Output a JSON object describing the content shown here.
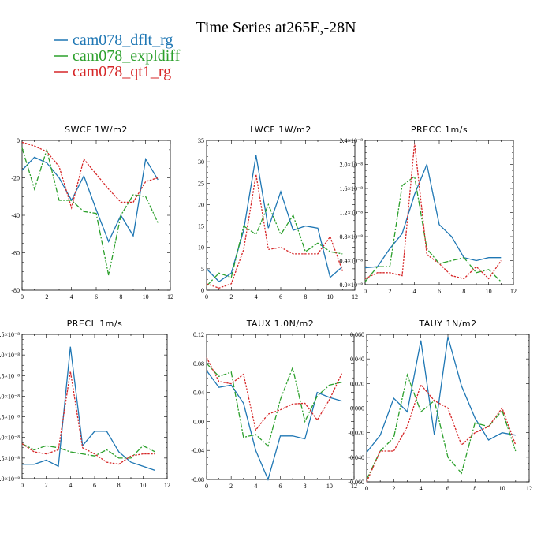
{
  "figure": {
    "title": "Time Series at265E,-28N",
    "colors": {
      "dflt": "#1f77b4",
      "expl": "#2ca02c",
      "qt1": "#d62728"
    }
  },
  "legend": {
    "entries": [
      {
        "name": "cam078_dflt_rg",
        "color": "#1f77b4"
      },
      {
        "name": "cam078_expldiff",
        "color": "#2ca02c"
      },
      {
        "name": "cam078_qt1_rg",
        "color": "#d62728"
      }
    ]
  },
  "chart_data": [
    {
      "type": "line",
      "title": "SWCF   1W/m2",
      "xlim": [
        0,
        12
      ],
      "ylim": [
        -80,
        0
      ],
      "xticks": [
        0,
        2,
        4,
        6,
        8,
        10,
        12
      ],
      "xtick_labels": [
        "0",
        "2",
        "4",
        "6",
        "8",
        "10",
        "12"
      ],
      "yticks": [
        -80,
        -60,
        -40,
        -20,
        0
      ],
      "ytick_labels": [
        "-80",
        "-60",
        "-40",
        "-20",
        "0"
      ],
      "x": [
        0,
        1,
        2,
        3,
        4,
        5,
        6,
        7,
        8,
        9,
        10,
        11
      ],
      "series": [
        {
          "name": "cam078_dflt_rg",
          "values": [
            -16,
            -9,
            -12,
            -20,
            -32,
            -19,
            -37,
            -54,
            -40,
            -51,
            -10,
            -21
          ]
        },
        {
          "name": "cam078_expldiff",
          "values": [
            -4,
            -26,
            -5,
            -32,
            -32,
            -38,
            -39,
            -72,
            -40,
            -29,
            -30,
            -44
          ]
        },
        {
          "name": "cam078_qt1_rg",
          "values": [
            -1,
            -3,
            -6,
            -14,
            -36,
            -10,
            -18,
            -26,
            -33,
            -33,
            -22,
            -20
          ]
        }
      ]
    },
    {
      "type": "line",
      "title": "LWCF   1W/m2",
      "xlim": [
        0,
        12
      ],
      "ylim": [
        0,
        35
      ],
      "xticks": [
        0,
        2,
        4,
        6,
        8,
        10,
        12
      ],
      "xtick_labels": [
        "0",
        "2",
        "4",
        "6",
        "8",
        "10",
        "12"
      ],
      "yticks": [
        0,
        5,
        10,
        15,
        20,
        25,
        30,
        35
      ],
      "ytick_labels": [
        "0",
        "5",
        "10",
        "15",
        "20",
        "25",
        "30",
        "35"
      ],
      "x": [
        0,
        1,
        2,
        3,
        4,
        5,
        6,
        7,
        8,
        9,
        10,
        11
      ],
      "series": [
        {
          "name": "cam078_dflt_rg",
          "values": [
            5,
            2,
            4,
            14,
            31.5,
            14.5,
            23,
            14,
            15,
            14.5,
            3,
            5.5
          ]
        },
        {
          "name": "cam078_expldiff",
          "values": [
            1,
            4,
            3,
            15,
            13,
            20,
            13,
            17.5,
            9,
            11,
            9,
            8.5
          ]
        },
        {
          "name": "cam078_qt1_rg",
          "values": [
            1.5,
            0.5,
            1.5,
            9.5,
            27,
            9.5,
            10,
            8.5,
            8.5,
            8.5,
            12.5,
            4.5
          ]
        }
      ]
    },
    {
      "type": "line",
      "title": "PRECC   1m/s",
      "xlim": [
        0,
        12
      ],
      "ylim": [
        0,
        2.4e-08
      ],
      "xticks": [
        0,
        2,
        4,
        6,
        8,
        10,
        12
      ],
      "xtick_labels": [
        "0",
        "2",
        "4",
        "6",
        "8",
        "10",
        "12"
      ],
      "yticks": [
        0,
        4e-09,
        8e-09,
        1.2e-08,
        1.6e-08,
        2e-08,
        2.4e-08
      ],
      "ytick_labels": [
        "0.0×10⁻⁸",
        "0.4×10⁻⁸",
        "0.8×10⁻⁸",
        "1.2×10⁻⁸",
        "1.6×10⁻⁸",
        "2.0×10⁻⁸",
        "2.4×10⁻⁸"
      ],
      "x": [
        0,
        1,
        2,
        3,
        4,
        5,
        6,
        7,
        8,
        9,
        10,
        11
      ],
      "series": [
        {
          "name": "cam078_dflt_rg",
          "values": [
            2.8e-09,
            3e-09,
            6e-09,
            8.5e-09,
            1.5e-08,
            2e-08,
            1e-08,
            8e-09,
            4.5e-09,
            4e-09,
            4.5e-09,
            4.5e-09
          ]
        },
        {
          "name": "cam078_expldiff",
          "values": [
            5e-10,
            3e-09,
            3e-09,
            1.65e-08,
            1.8e-08,
            6e-09,
            3.5e-09,
            4e-09,
            4.5e-09,
            2e-09,
            2.5e-09,
            5e-10
          ]
        },
        {
          "name": "cam078_qt1_rg",
          "values": [
            1e-09,
            2e-09,
            2e-09,
            1.5e-09,
            2.35e-08,
            5e-09,
            3.5e-09,
            1.5e-09,
            1e-09,
            3e-09,
            1e-09,
            4e-09
          ]
        }
      ]
    },
    {
      "type": "line",
      "title": "PRECL   1m/s",
      "xlim": [
        0,
        12
      ],
      "ylim": [
        0,
        3.5e-08
      ],
      "xticks": [
        0,
        2,
        4,
        6,
        8,
        10,
        12
      ],
      "xtick_labels": [
        "0",
        "2",
        "4",
        "6",
        "8",
        "10",
        "12"
      ],
      "yticks": [
        0,
        5e-09,
        1e-08,
        1.5e-08,
        2e-08,
        2.5e-08,
        3e-08,
        3.5e-08
      ],
      "ytick_labels": [
        "0.0×10⁻⁸",
        "0.5×10⁻⁸",
        "1.0×10⁻⁸",
        "1.5×10⁻⁸",
        "2.0×10⁻⁸",
        "2.5×10⁻⁸",
        "3.0×10⁻⁸",
        "3.5×10⁻⁸"
      ],
      "x": [
        0,
        1,
        2,
        3,
        4,
        5,
        6,
        7,
        8,
        9,
        10,
        11
      ],
      "series": [
        {
          "name": "cam078_dflt_rg",
          "values": [
            3.5e-09,
            3.5e-09,
            4.5e-09,
            3e-09,
            3.2e-08,
            8e-09,
            1.15e-08,
            1.15e-08,
            6.5e-09,
            4e-09,
            3e-09,
            2e-09
          ]
        },
        {
          "name": "cam078_expldiff",
          "values": [
            8.5e-09,
            7e-09,
            8e-09,
            7.5e-09,
            6.5e-09,
            6e-09,
            5.5e-09,
            7e-09,
            5e-09,
            5e-09,
            8e-09,
            6.5e-09
          ]
        },
        {
          "name": "cam078_qt1_rg",
          "values": [
            8.5e-09,
            6.5e-09,
            6e-09,
            7e-09,
            2.6e-08,
            7.5e-09,
            6e-09,
            4e-09,
            3.5e-09,
            5.5e-09,
            6e-09,
            6e-09
          ]
        }
      ]
    },
    {
      "type": "line",
      "title": "TAUX   1.0N/m2",
      "xlim": [
        0,
        12
      ],
      "ylim": [
        -0.08,
        0.12
      ],
      "xticks": [
        0,
        2,
        4,
        6,
        8,
        10,
        12
      ],
      "xtick_labels": [
        "0",
        "2",
        "4",
        "6",
        "8",
        "10",
        "12"
      ],
      "yticks": [
        -0.08,
        -0.04,
        0,
        0.04,
        0.08,
        0.12
      ],
      "ytick_labels": [
        "-0.08",
        "-0.04",
        "0.00",
        "0.04",
        "0.08",
        "0.12"
      ],
      "x": [
        0,
        1,
        2,
        3,
        4,
        5,
        6,
        7,
        8,
        9,
        10,
        11
      ],
      "series": [
        {
          "name": "cam078_dflt_rg",
          "values": [
            0.07,
            0.047,
            0.05,
            0.025,
            -0.04,
            -0.08,
            -0.02,
            -0.02,
            -0.024,
            0.04,
            0.033,
            0.028
          ]
        },
        {
          "name": "cam078_expldiff",
          "values": [
            0.08,
            0.062,
            0.068,
            -0.022,
            -0.018,
            -0.034,
            0.03,
            0.074,
            0,
            0.035,
            0.05,
            0.054
          ]
        },
        {
          "name": "cam078_qt1_rg",
          "values": [
            0.088,
            0.055,
            0.052,
            0.065,
            -0.012,
            0.01,
            0.016,
            0.024,
            0.025,
            0.002,
            0.03,
            0.066
          ]
        }
      ]
    },
    {
      "type": "line",
      "title": "TAUY   1N/m2",
      "xlim": [
        0,
        12
      ],
      "ylim": [
        -0.06,
        0.06
      ],
      "xticks": [
        0,
        2,
        4,
        6,
        8,
        10,
        12
      ],
      "xtick_labels": [
        "0",
        "2",
        "4",
        "6",
        "8",
        "10",
        "12"
      ],
      "yticks": [
        -0.06,
        -0.04,
        -0.02,
        0,
        0.02,
        0.04,
        0.06
      ],
      "ytick_labels": [
        "-0.060",
        "-0.040",
        "-0.020",
        "0.000",
        "0.020",
        "0.040",
        "0.060"
      ],
      "x": [
        0,
        1,
        2,
        3,
        4,
        5,
        6,
        7,
        8,
        9,
        10,
        11
      ],
      "series": [
        {
          "name": "cam078_dflt_rg",
          "values": [
            -0.036,
            -0.022,
            0.008,
            -0.003,
            0.055,
            -0.022,
            0.058,
            0.018,
            -0.008,
            -0.026,
            -0.02,
            -0.022
          ]
        },
        {
          "name": "cam078_expldiff",
          "values": [
            -0.058,
            -0.035,
            -0.024,
            0.027,
            -0.003,
            0.006,
            -0.04,
            -0.053,
            -0.012,
            -0.015,
            -0.002,
            -0.035
          ]
        },
        {
          "name": "cam078_qt1_rg",
          "values": [
            -0.06,
            -0.035,
            -0.035,
            -0.015,
            0.019,
            0.006,
            0,
            -0.03,
            -0.02,
            -0.015,
            0,
            -0.03
          ]
        }
      ]
    }
  ]
}
